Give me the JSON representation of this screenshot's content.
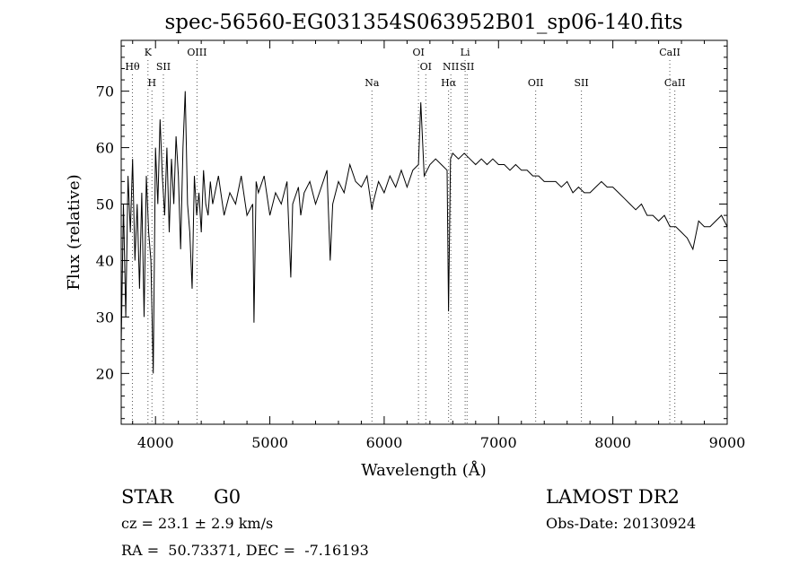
{
  "chart_data": {
    "type": "line",
    "title": "spec-56560-EG031354S063952B01_sp06-140.fits",
    "xlabel": "Wavelength (Å)",
    "ylabel": "Flux (relative)",
    "xlim": [
      3700,
      9000
    ],
    "ylim": [
      11,
      79
    ],
    "x_ticks": [
      "4000",
      "5000",
      "6000",
      "7000",
      "8000",
      "9000"
    ],
    "y_ticks": [
      "20",
      "30",
      "40",
      "50",
      "60",
      "70"
    ],
    "x_tick_values": [
      4000,
      5000,
      6000,
      7000,
      8000,
      9000
    ],
    "y_tick_values": [
      20,
      30,
      40,
      50,
      60,
      70
    ],
    "grid": false,
    "series": [
      {
        "x": [
          3700,
          3720,
          3740,
          3760,
          3780,
          3800,
          3820,
          3840,
          3860,
          3880,
          3900,
          3920,
          3940,
          3960,
          3980,
          4000,
          4020,
          4040,
          4060,
          4080,
          4100,
          4120,
          4140,
          4160,
          4180,
          4200,
          4220,
          4240,
          4260,
          4280,
          4300,
          4320,
          4340,
          4360,
          4380,
          4400,
          4420,
          4440,
          4460,
          4480,
          4500,
          4550,
          4600,
          4650,
          4700,
          4750,
          4800,
          4850,
          4861,
          4880,
          4900,
          4950,
          5000,
          5050,
          5100,
          5150,
          5183,
          5200,
          5250,
          5270,
          5300,
          5350,
          5400,
          5450,
          5500,
          5528,
          5550,
          5600,
          5650,
          5700,
          5750,
          5800,
          5850,
          5893,
          5900,
          5950,
          6000,
          6050,
          6100,
          6150,
          6200,
          6250,
          6300,
          6320,
          6350,
          6400,
          6450,
          6500,
          6550,
          6563,
          6580,
          6600,
          6650,
          6700,
          6750,
          6800,
          6850,
          6900,
          6950,
          7000,
          7050,
          7100,
          7150,
          7200,
          7250,
          7300,
          7350,
          7400,
          7450,
          7500,
          7550,
          7600,
          7650,
          7700,
          7750,
          7800,
          7850,
          7900,
          7950,
          8000,
          8050,
          8100,
          8150,
          8200,
          8250,
          8300,
          8350,
          8400,
          8450,
          8500,
          8550,
          8600,
          8650,
          8700,
          8750,
          8800,
          8850,
          8900,
          8950,
          9000
        ],
        "y": [
          25,
          50,
          30,
          55,
          45,
          58,
          40,
          50,
          35,
          52,
          30,
          55,
          45,
          40,
          20,
          60,
          50,
          65,
          55,
          48,
          60,
          45,
          58,
          50,
          62,
          55,
          42,
          60,
          70,
          50,
          45,
          35,
          55,
          48,
          52,
          45,
          56,
          50,
          48,
          54,
          50,
          55,
          48,
          52,
          50,
          55,
          48,
          50,
          29,
          54,
          52,
          55,
          48,
          52,
          50,
          54,
          37,
          50,
          53,
          48,
          52,
          54,
          50,
          53,
          56,
          40,
          50,
          54,
          52,
          57,
          54,
          53,
          55,
          49,
          50,
          54,
          52,
          55,
          53,
          56,
          53,
          56,
          57,
          68,
          55,
          57,
          58,
          57,
          56,
          31,
          58,
          59,
          58,
          59,
          58,
          57,
          58,
          57,
          58,
          57,
          57,
          56,
          57,
          56,
          56,
          55,
          55,
          54,
          54,
          54,
          53,
          54,
          52,
          53,
          52,
          52,
          53,
          54,
          53,
          53,
          52,
          51,
          50,
          49,
          50,
          48,
          48,
          47,
          48,
          46,
          46,
          45,
          44,
          42,
          47,
          46,
          46,
          47,
          48,
          46
        ]
      }
    ],
    "lines": [
      {
        "label": "Hθ",
        "x": 3798,
        "row": 2
      },
      {
        "label": "K",
        "x": 3934,
        "row": 1
      },
      {
        "label": "H",
        "x": 3969,
        "row": 3
      },
      {
        "label": "SII",
        "x": 4069,
        "row": 2
      },
      {
        "label": "OIII",
        "x": 4363,
        "row": 1
      },
      {
        "label": "Na",
        "x": 5893,
        "row": 3
      },
      {
        "label": "OI",
        "x": 6300,
        "row": 1
      },
      {
        "label": "OI",
        "x": 6364,
        "row": 2
      },
      {
        "label": "Hα",
        "x": 6563,
        "row": 3
      },
      {
        "label": "NII",
        "x": 6583,
        "row": 2
      },
      {
        "label": "Li",
        "x": 6708,
        "row": 1
      },
      {
        "label": "SII",
        "x": 6725,
        "row": 2
      },
      {
        "label": "OII",
        "x": 7325,
        "row": 3
      },
      {
        "label": "SII",
        "x": 7725,
        "row": 3
      },
      {
        "label": "CaII",
        "x": 8498,
        "row": 1
      },
      {
        "label": "CaII",
        "x": 8542,
        "row": 3
      }
    ]
  },
  "info": {
    "object_class": "STAR",
    "subclass": "G0",
    "survey": "LAMOST DR2",
    "redshift": "cz = 23.1 ± 2.9 km/s",
    "obs_date": "Obs-Date: 20130924",
    "coords": "RA =  50.73371, DEC =  -7.16193"
  }
}
